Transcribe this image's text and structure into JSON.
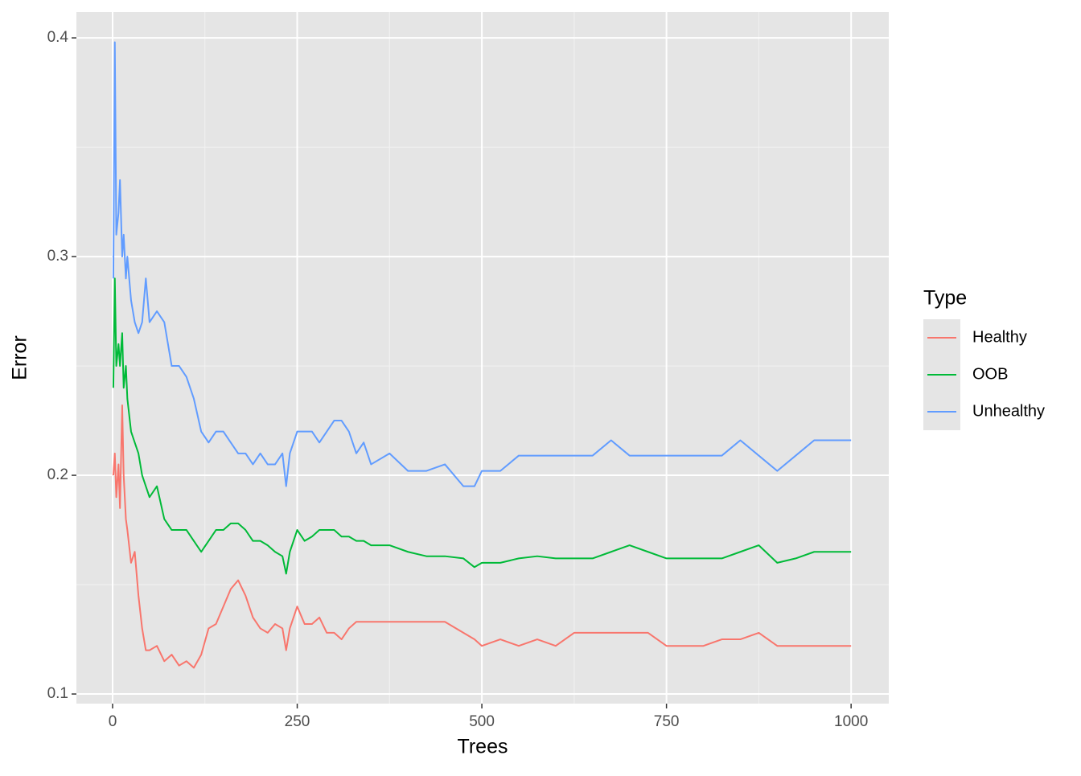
{
  "chart_data": {
    "type": "line",
    "x_label": "Trees",
    "y_label": "Error",
    "legend_title": "Type",
    "legend": "right",
    "xlim": [
      -49,
      1051
    ],
    "ylim": [
      0.0956,
      0.4118
    ],
    "xticks": [
      0,
      250,
      500,
      750,
      1000
    ],
    "yticks": [
      0.1,
      0.2,
      0.3,
      0.4
    ],
    "x_minor_breaks": [
      125,
      375,
      625,
      875
    ],
    "y_minor_breaks": [
      0.15,
      0.25,
      0.35
    ],
    "grid": true,
    "x": [
      1,
      3,
      5,
      8,
      10,
      13,
      15,
      18,
      20,
      25,
      30,
      35,
      40,
      45,
      50,
      60,
      70,
      80,
      90,
      100,
      110,
      120,
      130,
      140,
      150,
      160,
      170,
      180,
      190,
      200,
      210,
      220,
      230,
      235,
      240,
      250,
      260,
      270,
      280,
      290,
      300,
      310,
      320,
      330,
      340,
      350,
      375,
      400,
      425,
      450,
      475,
      490,
      500,
      525,
      550,
      575,
      600,
      625,
      650,
      675,
      700,
      725,
      750,
      775,
      800,
      825,
      850,
      875,
      900,
      925,
      950,
      975,
      1000
    ],
    "series": [
      {
        "name": "Healthy",
        "color": "#f8766d",
        "values": [
          0.2,
          0.21,
          0.19,
          0.205,
          0.185,
          0.232,
          0.2,
          0.18,
          0.175,
          0.16,
          0.165,
          0.145,
          0.13,
          0.12,
          0.12,
          0.122,
          0.115,
          0.118,
          0.113,
          0.115,
          0.112,
          0.118,
          0.13,
          0.132,
          0.14,
          0.148,
          0.152,
          0.145,
          0.135,
          0.13,
          0.128,
          0.132,
          0.13,
          0.12,
          0.13,
          0.14,
          0.132,
          0.132,
          0.135,
          0.128,
          0.128,
          0.125,
          0.13,
          0.133,
          0.133,
          0.133,
          0.133,
          0.133,
          0.133,
          0.133,
          0.128,
          0.125,
          0.122,
          0.125,
          0.122,
          0.125,
          0.122,
          0.128,
          0.128,
          0.128,
          0.128,
          0.128,
          0.122,
          0.122,
          0.122,
          0.125,
          0.125,
          0.128,
          0.122,
          0.122,
          0.122,
          0.122,
          0.122
        ]
      },
      {
        "name": "OOB",
        "color": "#00ba38",
        "values": [
          0.24,
          0.29,
          0.25,
          0.26,
          0.25,
          0.265,
          0.24,
          0.25,
          0.235,
          0.22,
          0.215,
          0.21,
          0.2,
          0.195,
          0.19,
          0.195,
          0.18,
          0.175,
          0.175,
          0.175,
          0.17,
          0.165,
          0.17,
          0.175,
          0.175,
          0.178,
          0.178,
          0.175,
          0.17,
          0.17,
          0.168,
          0.165,
          0.163,
          0.155,
          0.165,
          0.175,
          0.17,
          0.172,
          0.175,
          0.175,
          0.175,
          0.172,
          0.172,
          0.17,
          0.17,
          0.168,
          0.168,
          0.165,
          0.163,
          0.163,
          0.162,
          0.158,
          0.16,
          0.16,
          0.162,
          0.163,
          0.162,
          0.162,
          0.162,
          0.165,
          0.168,
          0.165,
          0.162,
          0.162,
          0.162,
          0.162,
          0.165,
          0.168,
          0.16,
          0.162,
          0.165,
          0.165,
          0.165
        ]
      },
      {
        "name": "Unhealthy",
        "color": "#619cff",
        "values": [
          0.29,
          0.398,
          0.31,
          0.32,
          0.335,
          0.3,
          0.31,
          0.29,
          0.3,
          0.28,
          0.27,
          0.265,
          0.27,
          0.29,
          0.27,
          0.275,
          0.27,
          0.25,
          0.25,
          0.245,
          0.235,
          0.22,
          0.215,
          0.22,
          0.22,
          0.215,
          0.21,
          0.21,
          0.205,
          0.21,
          0.205,
          0.205,
          0.21,
          0.195,
          0.21,
          0.22,
          0.22,
          0.22,
          0.215,
          0.22,
          0.225,
          0.225,
          0.22,
          0.21,
          0.215,
          0.205,
          0.21,
          0.202,
          0.202,
          0.205,
          0.195,
          0.195,
          0.202,
          0.202,
          0.209,
          0.209,
          0.209,
          0.209,
          0.209,
          0.216,
          0.209,
          0.209,
          0.209,
          0.209,
          0.209,
          0.209,
          0.216,
          0.209,
          0.202,
          0.209,
          0.216,
          0.216,
          0.216
        ]
      }
    ]
  }
}
